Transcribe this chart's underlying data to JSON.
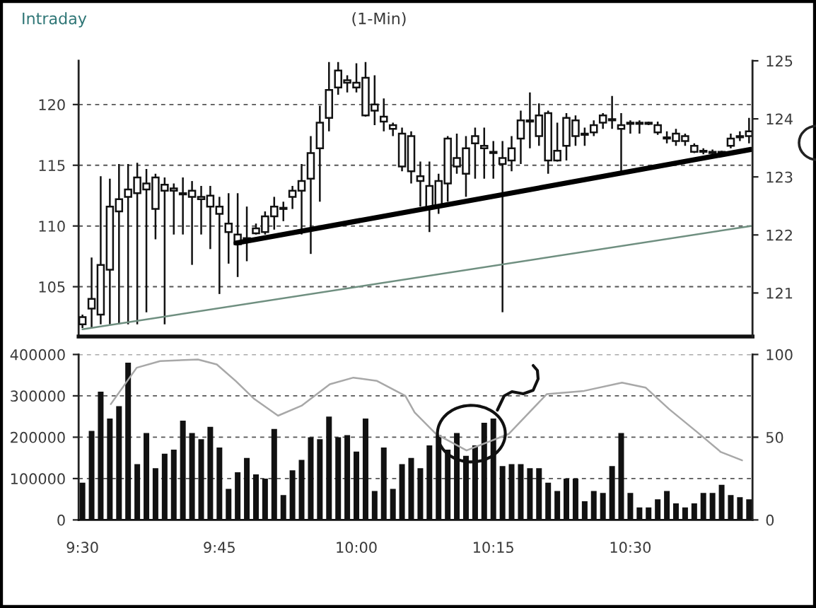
{
  "chart_data": [
    {
      "type": "candlestick",
      "title": "Intraday",
      "subtitle": "(1-Min)",
      "color": "#111111",
      "x": [
        9.5,
        9.5167,
        9.5333,
        9.55,
        9.5667,
        9.5833,
        9.6,
        9.6167,
        9.6333,
        9.65,
        9.6667,
        9.6833,
        9.7,
        9.7167,
        9.7333,
        9.75,
        9.7667,
        9.7833,
        9.8,
        9.8167,
        9.8333,
        9.85,
        9.8667,
        9.8833,
        9.9,
        9.9167,
        9.9333,
        9.95,
        9.9667,
        9.9833,
        10.0,
        10.0167,
        10.0333,
        10.05,
        10.0667,
        10.0833,
        10.1,
        10.1167,
        10.1333,
        10.15,
        10.1667,
        10.1833,
        10.2,
        10.2167,
        10.2333,
        10.25,
        10.2667,
        10.2833,
        10.3,
        10.3167,
        10.3333,
        10.35,
        10.3667,
        10.3833,
        10.4,
        10.4167,
        10.4333,
        10.45,
        10.4667,
        10.4833,
        10.5,
        10.5167,
        10.5333,
        10.55,
        10.5667,
        10.5833,
        10.6,
        10.6167,
        10.6333,
        10.65,
        10.6667,
        10.6833,
        10.7,
        10.7167
      ],
      "ohlc": [
        [
          101.9,
          102.7,
          101.6,
          102.5
        ],
        [
          103.2,
          107.4,
          101.6,
          104.0
        ],
        [
          102.7,
          114.1,
          101.9,
          106.8
        ],
        [
          106.4,
          113.9,
          101.9,
          111.6
        ],
        [
          111.2,
          115.1,
          101.9,
          112.2
        ],
        [
          112.4,
          115.1,
          101.9,
          113.0
        ],
        [
          112.7,
          115.2,
          101.9,
          114.0
        ],
        [
          113.0,
          114.7,
          102.9,
          113.5
        ],
        [
          111.4,
          114.3,
          108.9,
          114.0
        ],
        [
          112.9,
          114.0,
          101.9,
          113.4
        ],
        [
          112.9,
          113.5,
          109.3,
          113.1
        ],
        [
          112.6,
          114.0,
          109.3,
          112.7
        ],
        [
          112.4,
          113.7,
          106.8,
          112.9
        ],
        [
          112.2,
          113.3,
          109.3,
          112.4
        ],
        [
          111.6,
          113.3,
          108.1,
          112.5
        ],
        [
          111.0,
          112.4,
          104.4,
          111.6
        ],
        [
          109.5,
          112.7,
          106.9,
          110.2
        ],
        [
          108.5,
          112.7,
          105.8,
          109.3
        ],
        [
          108.9,
          111.6,
          107.1,
          109.0
        ],
        [
          109.4,
          110.2,
          109.3,
          109.8
        ],
        [
          109.5,
          111.2,
          109.3,
          110.8
        ],
        [
          110.8,
          112.4,
          109.7,
          111.6
        ],
        [
          111.4,
          112.0,
          110.4,
          111.5
        ],
        [
          112.4,
          113.3,
          111.4,
          112.9
        ],
        [
          112.9,
          115.1,
          109.3,
          113.7
        ],
        [
          113.9,
          117.4,
          107.7,
          116.0
        ],
        [
          116.4,
          119.9,
          112.0,
          118.5
        ],
        [
          118.9,
          123.5,
          117.8,
          121.2
        ],
        [
          121.4,
          123.5,
          120.8,
          122.8
        ],
        [
          121.8,
          122.4,
          121.0,
          122.0
        ],
        [
          121.4,
          123.4,
          121.0,
          121.8
        ],
        [
          119.1,
          123.5,
          119.0,
          122.2
        ],
        [
          119.5,
          122.4,
          118.3,
          120.0
        ],
        [
          118.6,
          120.5,
          117.8,
          119.0
        ],
        [
          118.0,
          118.5,
          117.4,
          118.3
        ],
        [
          114.9,
          118.1,
          114.5,
          117.6
        ],
        [
          114.5,
          117.8,
          113.5,
          117.4
        ],
        [
          113.7,
          115.3,
          111.6,
          114.1
        ],
        [
          111.6,
          115.3,
          109.5,
          113.3
        ],
        [
          111.6,
          114.3,
          111.0,
          113.7
        ],
        [
          113.5,
          117.4,
          112.0,
          117.2
        ],
        [
          114.9,
          117.6,
          114.3,
          115.6
        ],
        [
          114.3,
          117.4,
          112.4,
          116.4
        ],
        [
          116.8,
          118.1,
          113.9,
          117.4
        ],
        [
          116.4,
          118.1,
          113.9,
          116.6
        ],
        [
          116.0,
          117.0,
          113.9,
          116.1
        ],
        [
          115.1,
          117.0,
          102.9,
          115.6
        ],
        [
          115.4,
          117.4,
          114.5,
          116.4
        ],
        [
          117.2,
          119.5,
          115.1,
          118.7
        ],
        [
          118.6,
          121.0,
          116.4,
          118.7
        ],
        [
          117.4,
          120.1,
          116.6,
          119.1
        ],
        [
          115.4,
          119.5,
          114.3,
          119.3
        ],
        [
          115.4,
          118.5,
          115.3,
          116.2
        ],
        [
          116.6,
          119.3,
          115.4,
          118.9
        ],
        [
          117.4,
          119.1,
          116.6,
          118.7
        ],
        [
          117.5,
          118.1,
          116.6,
          117.6
        ],
        [
          117.7,
          118.7,
          117.4,
          118.3
        ],
        [
          118.5,
          119.3,
          118.0,
          119.1
        ],
        [
          118.7,
          120.7,
          118.0,
          118.8
        ],
        [
          118.0,
          119.3,
          114.3,
          118.3
        ],
        [
          118.4,
          118.7,
          117.6,
          118.5
        ],
        [
          118.4,
          118.7,
          117.6,
          118.5
        ],
        [
          118.4,
          118.6,
          118.3,
          118.5
        ],
        [
          117.7,
          118.6,
          117.5,
          118.3
        ],
        [
          117.2,
          117.8,
          116.8,
          117.3
        ],
        [
          117.0,
          118.0,
          116.6,
          117.6
        ],
        [
          117.0,
          117.6,
          116.6,
          117.4
        ],
        [
          116.1,
          116.8,
          116.0,
          116.6
        ],
        [
          116.1,
          116.4,
          115.9,
          116.2
        ],
        [
          116.0,
          116.3,
          115.8,
          116.1
        ],
        [
          116.0,
          116.2,
          115.8,
          116.1
        ],
        [
          116.6,
          117.6,
          116.4,
          117.2
        ],
        [
          117.3,
          117.8,
          117.0,
          117.4
        ],
        [
          117.4,
          118.9,
          116.8,
          117.8
        ]
      ],
      "series": [
        {
          "type": "line",
          "x": [
            9.7805,
            10.72
          ],
          "values": [
            108.6,
            116.3
          ],
          "color": "#000000"
        },
        {
          "type": "line",
          "x": [
            9.5,
            10.72
          ],
          "values": [
            101.5,
            110.0
          ],
          "color": "#6f8f80"
        }
      ],
      "xlim": [
        9.493,
        10.723
      ],
      "ylim": [
        100.9,
        123.6
      ],
      "yticks": [
        105,
        110,
        115,
        120
      ],
      "y2lim": [
        120.25,
        125
      ],
      "y2ticks": [
        121,
        122,
        123,
        124,
        125
      ],
      "grid": "y",
      "tick_labels": "y"
    },
    {
      "type": "bar",
      "x": [
        9.5,
        9.5167,
        9.5333,
        9.55,
        9.5667,
        9.5833,
        9.6,
        9.6167,
        9.6333,
        9.65,
        9.6667,
        9.6833,
        9.7,
        9.7167,
        9.7333,
        9.75,
        9.7667,
        9.7833,
        9.8,
        9.8167,
        9.8333,
        9.85,
        9.8667,
        9.8833,
        9.9,
        9.9167,
        9.9333,
        9.95,
        9.9667,
        9.9833,
        10.0,
        10.0167,
        10.0333,
        10.05,
        10.0667,
        10.0833,
        10.1,
        10.1167,
        10.1333,
        10.15,
        10.1667,
        10.1833,
        10.2,
        10.2167,
        10.2333,
        10.25,
        10.2667,
        10.2833,
        10.3,
        10.3167,
        10.3333,
        10.35,
        10.3667,
        10.3833,
        10.4,
        10.4167,
        10.4333,
        10.45,
        10.4667,
        10.4833,
        10.5,
        10.5167,
        10.5333,
        10.55,
        10.5667,
        10.5833,
        10.6,
        10.6167,
        10.6333,
        10.65,
        10.6667,
        10.6833,
        10.7,
        10.7167
      ],
      "series": [
        {
          "values": [
            90000,
            215000,
            310000,
            245000,
            275000,
            380000,
            135000,
            210000,
            125000,
            160000,
            170000,
            240000,
            210000,
            195000,
            225000,
            175000,
            75000,
            115000,
            150000,
            110000,
            100000,
            220000,
            60000,
            120000,
            145000,
            200000,
            195000,
            250000,
            200000,
            205000,
            165000,
            245000,
            70000,
            175000,
            75000,
            135000,
            150000,
            125000,
            180000,
            205000,
            170000,
            210000,
            155000,
            180000,
            235000,
            245000,
            130000,
            135000,
            135000,
            125000,
            125000,
            90000,
            70000,
            100000,
            100000,
            45000,
            70000,
            65000,
            130000,
            210000,
            65000,
            30000,
            30000,
            50000,
            70000,
            40000,
            30000,
            40000,
            65000,
            65000,
            85000,
            60000,
            55000,
            50000
          ],
          "color": "#111111"
        },
        {
          "type": "line",
          "axis": "y2",
          "x": [
            9.5517,
            9.599,
            9.6418,
            9.7108,
            9.7452,
            9.7797,
            9.814,
            9.857,
            9.8998,
            9.9515,
            9.9945,
            10.0377,
            10.0893,
            10.1063,
            10.145,
            10.201,
            10.2783,
            10.3473,
            10.4158,
            10.4848,
            10.5278,
            10.5707,
            10.6223,
            10.6653,
            10.704
          ],
          "values": [
            70,
            92,
            96,
            97,
            94,
            84,
            73,
            63,
            69,
            82,
            86,
            84,
            75,
            65,
            52,
            42,
            52,
            76,
            78,
            83,
            80,
            67,
            53,
            41,
            36
          ],
          "color": "#a8a8a8"
        }
      ],
      "xlim": [
        9.493,
        10.723
      ],
      "xticks": [
        {
          "value": 9.5,
          "label": "9:30"
        },
        {
          "value": 9.75,
          "label": "9:45"
        },
        {
          "value": 10.0,
          "label": "10:00"
        },
        {
          "value": 10.25,
          "label": "10:15"
        },
        {
          "value": 10.5,
          "label": "10:30"
        }
      ],
      "ylim": [
        0,
        400000
      ],
      "yticks": [
        0,
        100000,
        200000,
        300000,
        400000
      ],
      "y2lim": [
        0,
        100
      ],
      "y2ticks": [
        0,
        50,
        100
      ],
      "grid": "y"
    }
  ]
}
